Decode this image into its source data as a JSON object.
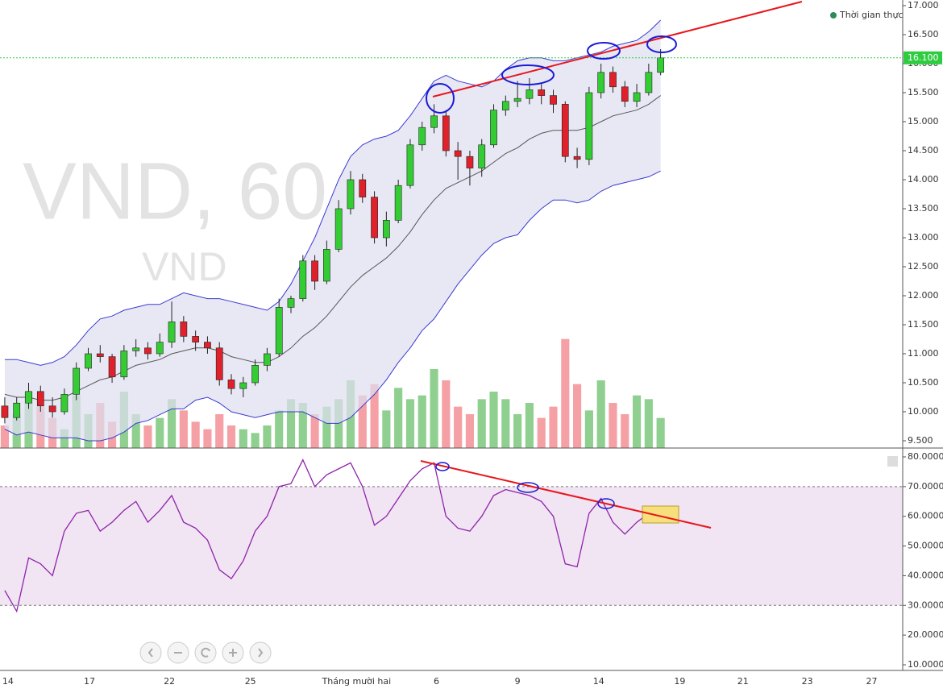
{
  "chart_data": [
    {
      "type": "candlestick",
      "title": "VND, 60",
      "subtitle": "VND",
      "legend": "Thời gian thực",
      "xlim": [
        -0.4,
        75.3
      ],
      "xticks": [
        {
          "value": 0.27,
          "label": "14"
        },
        {
          "value": 7.1,
          "label": "17"
        },
        {
          "value": 13.8,
          "label": "22"
        },
        {
          "value": 20.6,
          "label": "25"
        },
        {
          "value": 29.5,
          "label": "Tháng mười hai"
        },
        {
          "value": 36.2,
          "label": "6"
        },
        {
          "value": 43,
          "label": "9"
        },
        {
          "value": 49.8,
          "label": "14"
        },
        {
          "value": 56.6,
          "label": "19"
        },
        {
          "value": 61.9,
          "label": "21"
        },
        {
          "value": 67.3,
          "label": "23"
        },
        {
          "value": 72.7,
          "label": "27"
        }
      ],
      "ylim": [
        9375,
        17097
      ],
      "yticks": [
        {
          "value": 9500,
          "label": "9.500"
        },
        {
          "value": 10000,
          "label": "10.000"
        },
        {
          "value": 10500,
          "label": "10.500"
        },
        {
          "value": 11000,
          "label": "11.000"
        },
        {
          "value": 11500,
          "label": "11.500"
        },
        {
          "value": 12000,
          "label": "12.000"
        },
        {
          "value": 12500,
          "label": "12.500"
        },
        {
          "value": 13000,
          "label": "13.000"
        },
        {
          "value": 13500,
          "label": "13.500"
        },
        {
          "value": 14000,
          "label": "14.000"
        },
        {
          "value": 14500,
          "label": "14.500"
        },
        {
          "value": 15000,
          "label": "15.000"
        },
        {
          "value": 15500,
          "label": "15.500"
        },
        {
          "value": 16000,
          "label": "16.000"
        },
        {
          "value": 16500,
          "label": "16.500"
        },
        {
          "value": 17000,
          "label": "17.000"
        }
      ],
      "last_price": {
        "value": 16100,
        "label": "16.100"
      },
      "up_color": "#33cc33",
      "down_color": "#e0202a",
      "open": [
        10100,
        9900,
        10150,
        10350,
        10100,
        10000,
        10300,
        10750,
        11000,
        10950,
        10600,
        11050,
        11100,
        11000,
        11200,
        11550,
        11300,
        11200,
        11100,
        10550,
        10400,
        10500,
        10800,
        11000,
        11800,
        11950,
        12600,
        12250,
        12800,
        13500,
        14000,
        13700,
        13000,
        13300,
        13900,
        14600,
        14900,
        15100,
        14500,
        14400,
        14200,
        14600,
        15200,
        15350,
        15400,
        15550,
        15450,
        15300,
        14400,
        14350,
        15500,
        15850,
        15600,
        15350,
        15500,
        15850
      ],
      "high": [
        10250,
        10250,
        10500,
        10450,
        10250,
        10400,
        10850,
        11100,
        11150,
        11000,
        11150,
        11250,
        11200,
        11350,
        11900,
        11650,
        11400,
        11300,
        11200,
        10650,
        10600,
        10900,
        11100,
        11950,
        12000,
        12700,
        12700,
        12950,
        13650,
        14150,
        14100,
        13800,
        13450,
        14000,
        14700,
        15000,
        15300,
        15200,
        14650,
        14500,
        14700,
        15300,
        15450,
        15700,
        15750,
        15650,
        15550,
        15350,
        14550,
        15600,
        16000,
        15950,
        15700,
        15650,
        16000,
        16250
      ],
      "low": [
        9800,
        9850,
        10050,
        10000,
        9900,
        9950,
        10200,
        10700,
        10850,
        10500,
        10550,
        10950,
        10900,
        10950,
        11100,
        11200,
        11050,
        11000,
        10450,
        10300,
        10250,
        10450,
        10700,
        10950,
        11700,
        11900,
        12100,
        12200,
        12750,
        13400,
        13600,
        12900,
        12850,
        13250,
        13850,
        14500,
        14800,
        14400,
        14000,
        13900,
        14050,
        14550,
        15100,
        15250,
        15300,
        15300,
        15150,
        14300,
        14200,
        14250,
        15400,
        15500,
        15250,
        15250,
        15450,
        15800
      ],
      "close": [
        9900,
        10150,
        10350,
        10100,
        10000,
        10300,
        10750,
        11000,
        10950,
        10600,
        11050,
        11100,
        11000,
        11200,
        11550,
        11300,
        11200,
        11100,
        10550,
        10400,
        10500,
        10800,
        11000,
        11800,
        11950,
        12600,
        12250,
        12800,
        13500,
        14000,
        13700,
        13000,
        13300,
        13900,
        14600,
        14900,
        15100,
        14500,
        14400,
        14200,
        14600,
        15200,
        15350,
        15400,
        15550,
        15450,
        15300,
        14400,
        14350,
        15500,
        15850,
        15600,
        15350,
        15500,
        15850,
        16100
      ],
      "bands": {
        "color": "#3a3ad0",
        "fill": "#dedef0",
        "upper": [
          10900,
          10900,
          10850,
          10800,
          10850,
          10950,
          11150,
          11400,
          11600,
          11650,
          11750,
          11800,
          11850,
          11850,
          11950,
          12050,
          12000,
          11950,
          11950,
          11900,
          11850,
          11800,
          11750,
          11900,
          12200,
          12600,
          13000,
          13500,
          14000,
          14400,
          14600,
          14700,
          14750,
          14850,
          15100,
          15400,
          15700,
          15800,
          15700,
          15650,
          15600,
          15700,
          15900,
          16050,
          16100,
          16100,
          16050,
          16050,
          16100,
          16150,
          16200,
          16300,
          16350,
          16400,
          16550,
          16750
        ],
        "lower": [
          9700,
          9600,
          9650,
          9600,
          9550,
          9550,
          9550,
          9500,
          9500,
          9550,
          9650,
          9800,
          9850,
          9950,
          10050,
          10050,
          10200,
          10250,
          10150,
          10000,
          9950,
          9900,
          9950,
          10000,
          10000,
          10000,
          9900,
          9800,
          9800,
          9900,
          10100,
          10300,
          10550,
          10850,
          11100,
          11400,
          11600,
          11900,
          12200,
          12450,
          12700,
          12900,
          13000,
          13050,
          13300,
          13500,
          13650,
          13650,
          13600,
          13650,
          13800,
          13900,
          13950,
          14000,
          14050,
          14150
        ]
      },
      "ma": {
        "color": "#555555",
        "values": [
          10300,
          10250,
          10250,
          10200,
          10200,
          10250,
          10350,
          10450,
          10550,
          10600,
          10700,
          10800,
          10850,
          10900,
          11000,
          11050,
          11100,
          11100,
          11050,
          10950,
          10900,
          10850,
          10850,
          10950,
          11100,
          11300,
          11450,
          11650,
          11900,
          12150,
          12350,
          12500,
          12650,
          12850,
          13100,
          13400,
          13650,
          13850,
          13950,
          14050,
          14150,
          14300,
          14450,
          14550,
          14700,
          14800,
          14850,
          14850,
          14850,
          14900,
          15000,
          15100,
          15150,
          15200,
          15300,
          15450
        ]
      }
    },
    {
      "type": "bar",
      "up_color": "#8fcf8f",
      "down_color": "#f4a0a4",
      "ylim": [
        0,
        3000000
      ],
      "values": [
        600000,
        900000,
        1500000,
        1100000,
        800000,
        500000,
        1400000,
        900000,
        1200000,
        700000,
        1500000,
        900000,
        600000,
        800000,
        1300000,
        1000000,
        700000,
        500000,
        900000,
        600000,
        500000,
        400000,
        600000,
        1000000,
        1300000,
        1200000,
        900000,
        1100000,
        1300000,
        1800000,
        1400000,
        1700000,
        1000000,
        1600000,
        1300000,
        1400000,
        2100000,
        1800000,
        1100000,
        900000,
        1300000,
        1500000,
        1300000,
        900000,
        1200000,
        800000,
        1100000,
        2900000,
        1700000,
        1000000,
        1800000,
        1200000,
        900000,
        1400000,
        1300000,
        800000
      ]
    },
    {
      "type": "line",
      "color": "#8e24aa",
      "ylim": [
        8.1,
        81.9
      ],
      "overbought": 70,
      "oversold": 30,
      "band_color": "#f1e4f3",
      "yticks": [
        {
          "value": 10,
          "label": "10.0000"
        },
        {
          "value": 20,
          "label": "20.0000"
        },
        {
          "value": 30,
          "label": "30.0000"
        },
        {
          "value": 40,
          "label": "40.0000"
        },
        {
          "value": 50,
          "label": "50.0000"
        },
        {
          "value": 60,
          "label": "60.0000"
        },
        {
          "value": 70,
          "label": "70.0000"
        },
        {
          "value": 80,
          "label": "80.0000"
        }
      ],
      "values": [
        35,
        28,
        46,
        44,
        40,
        55,
        61,
        62,
        55,
        58,
        62,
        65,
        58,
        62,
        67,
        58,
        56,
        52,
        42,
        39,
        45,
        55,
        60,
        70,
        71,
        79,
        70,
        74,
        76,
        78,
        70,
        57,
        60,
        66,
        72,
        76,
        78,
        60,
        56,
        55,
        60,
        67,
        69,
        68,
        67,
        65,
        60,
        44,
        43,
        61,
        66,
        58,
        54,
        58,
        61,
        62
      ]
    }
  ]
}
